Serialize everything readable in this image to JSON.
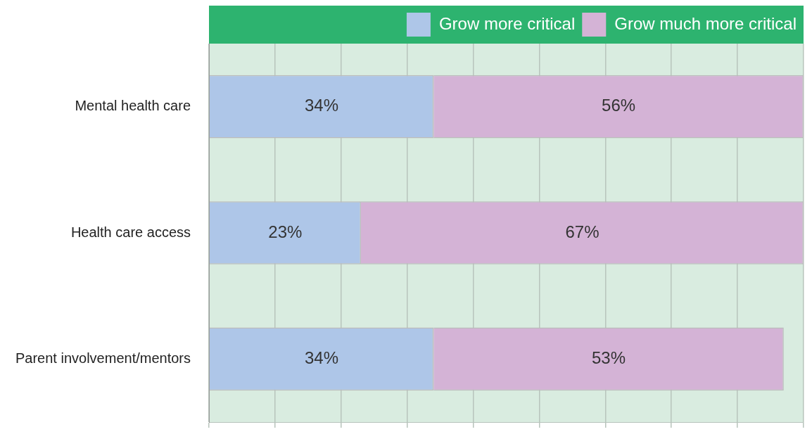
{
  "chart_data": {
    "type": "bar",
    "orientation": "horizontal",
    "stacked": true,
    "categories": [
      "Mental health care",
      "Health care access",
      "Parent involvement/mentors"
    ],
    "series": [
      {
        "name": "Grow more critical",
        "color": "#aec6e8",
        "values": [
          34,
          23,
          34
        ],
        "value_labels": [
          "34%",
          "23%",
          "34%"
        ]
      },
      {
        "name": "Grow much more critical",
        "color": "#d4b3d6",
        "values": [
          56,
          67,
          53
        ],
        "value_labels": [
          "56%",
          "67%",
          "53%"
        ]
      }
    ],
    "tick_labels": "y",
    "grid": "x",
    "legend": "top right"
  }
}
